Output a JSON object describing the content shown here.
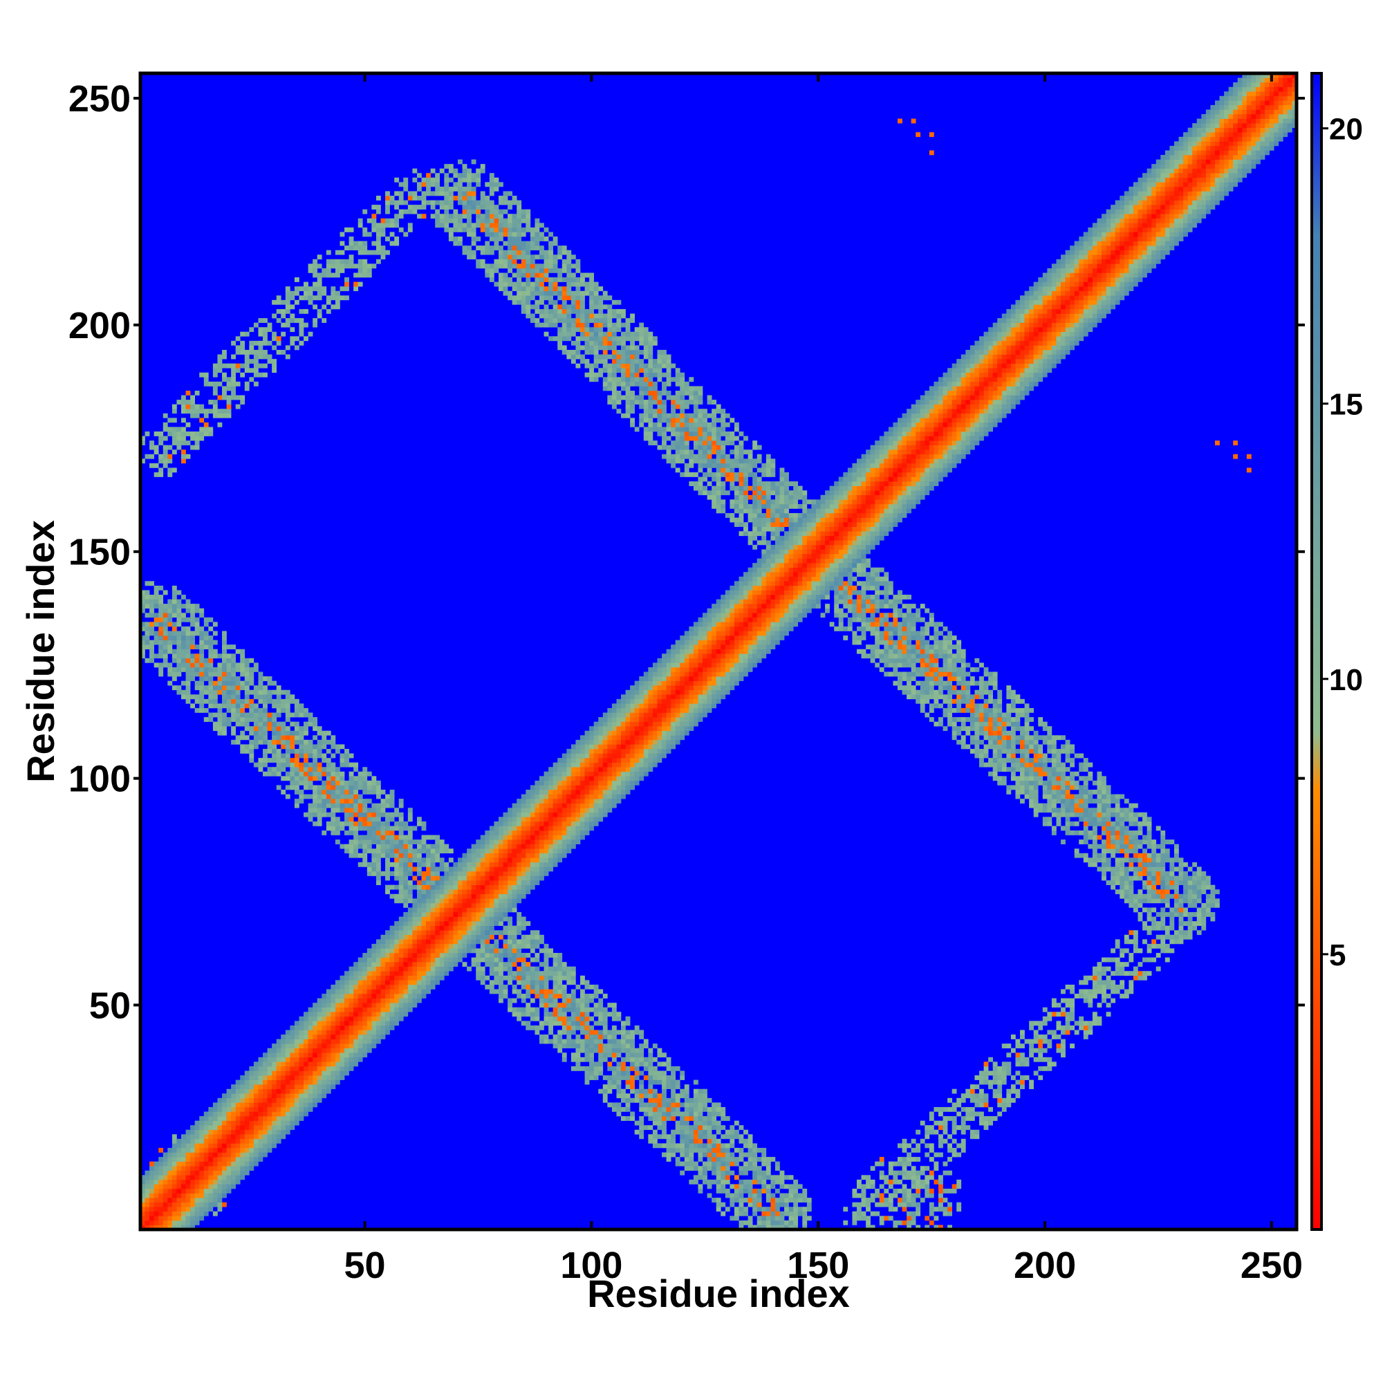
{
  "chart_data": {
    "type": "heatmap",
    "title": "",
    "xlabel": "Residue index",
    "ylabel": "Residue index",
    "xlim": [
      1,
      255
    ],
    "ylim": [
      1,
      255
    ],
    "x_ticks": [
      50,
      100,
      150,
      200,
      250
    ],
    "y_ticks": [
      50,
      100,
      150,
      200,
      250
    ],
    "colorbar": {
      "ticks": [
        5,
        10,
        15,
        20
      ],
      "range": [
        0,
        21
      ],
      "colors": [
        "#ff0000",
        "#ff8c00",
        "#8fbc8f",
        "#4682b4",
        "#0000ff"
      ],
      "stops": [
        0,
        8,
        9,
        18,
        21
      ]
    },
    "background_value": 21,
    "features": [
      {
        "kind": "diagonal",
        "from": [
          1,
          1
        ],
        "to": [
          255,
          255
        ],
        "description_value": "near-contact band"
      },
      {
        "kind": "antiparallel-band",
        "points": [
          [
            4,
            135
          ],
          [
            70,
            72
          ]
        ]
      },
      {
        "kind": "antiparallel-band",
        "points": [
          [
            72,
            70
          ],
          [
            140,
            5
          ]
        ]
      },
      {
        "kind": "antiparallel-band",
        "points": [
          [
            72,
            228
          ],
          [
            148,
            150
          ]
        ]
      },
      {
        "kind": "antiparallel-band",
        "points": [
          [
            150,
            148
          ],
          [
            230,
            73
          ]
        ]
      },
      {
        "kind": "parallel-band",
        "points": [
          [
            5,
            172
          ],
          [
            62,
            230
          ]
        ]
      },
      {
        "kind": "parallel-band",
        "points": [
          [
            160,
            5
          ],
          [
            228,
            68
          ]
        ]
      },
      {
        "kind": "corner-blob",
        "center": [
          12,
          12
        ]
      },
      {
        "kind": "corner-blob",
        "center": [
          172,
          8
        ]
      },
      {
        "kind": "isolated-contacts",
        "points": [
          [
            168,
            245
          ],
          [
            171,
            245
          ],
          [
            172,
            242
          ],
          [
            175,
            242
          ],
          [
            175,
            238
          ],
          [
            238,
            174
          ],
          [
            242,
            174
          ],
          [
            242,
            171
          ],
          [
            245,
            171
          ],
          [
            245,
            168
          ]
        ]
      }
    ]
  }
}
